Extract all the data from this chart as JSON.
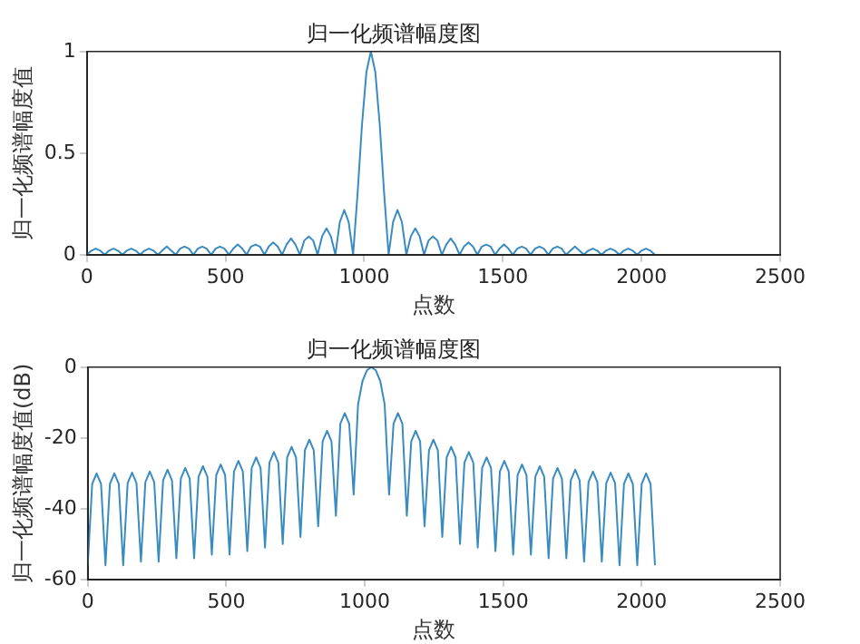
{
  "chart_data": [
    {
      "type": "line",
      "title": "归一化频谱幅度图",
      "xlabel": "点数",
      "ylabel": "归一化频谱幅度值",
      "xlim": [
        0,
        2500
      ],
      "xticks": [
        0,
        500,
        1000,
        1500,
        2000,
        2500
      ],
      "ylim": [
        0,
        1
      ],
      "yticks": [
        0,
        0.5,
        1
      ],
      "grid": false,
      "marker": "none",
      "line_style": "solid",
      "x": [
        0,
        16,
        32,
        48,
        64,
        80,
        96,
        112,
        128,
        144,
        160,
        176,
        192,
        208,
        224,
        240,
        256,
        272,
        288,
        304,
        320,
        336,
        352,
        368,
        384,
        400,
        416,
        432,
        448,
        464,
        480,
        496,
        512,
        528,
        544,
        560,
        576,
        592,
        608,
        624,
        640,
        656,
        672,
        688,
        704,
        720,
        736,
        752,
        768,
        784,
        800,
        816,
        832,
        848,
        864,
        880,
        896,
        912,
        928,
        944,
        960,
        976,
        992,
        1008,
        1024,
        1040,
        1056,
        1072,
        1088,
        1104,
        1120,
        1136,
        1152,
        1168,
        1184,
        1200,
        1216,
        1232,
        1248,
        1264,
        1280,
        1296,
        1312,
        1328,
        1344,
        1360,
        1376,
        1392,
        1408,
        1424,
        1440,
        1456,
        1472,
        1488,
        1504,
        1520,
        1536,
        1552,
        1568,
        1584,
        1600,
        1616,
        1632,
        1648,
        1664,
        1680,
        1696,
        1712,
        1728,
        1744,
        1760,
        1776,
        1792,
        1808,
        1824,
        1840,
        1856,
        1872,
        1888,
        1904,
        1920,
        1936,
        1952,
        1968,
        1984,
        2000,
        2016,
        2032,
        2048
      ],
      "series": [
        {
          "color": "#3a8bc0",
          "values": [
            0,
            0.02,
            0.03,
            0.02,
            0,
            0.02,
            0.03,
            0.02,
            0,
            0.02,
            0.03,
            0.02,
            0,
            0.02,
            0.03,
            0.02,
            0,
            0.02,
            0.04,
            0.02,
            0,
            0.03,
            0.04,
            0.03,
            0,
            0.03,
            0.04,
            0.03,
            0,
            0.03,
            0.04,
            0.03,
            0,
            0.03,
            0.05,
            0.03,
            0,
            0.04,
            0.05,
            0.04,
            0,
            0.04,
            0.06,
            0.04,
            0,
            0.05,
            0.08,
            0.05,
            0,
            0.07,
            0.09,
            0.07,
            0,
            0.09,
            0.13,
            0.09,
            0,
            0.16,
            0.22,
            0.16,
            0,
            0.3,
            0.64,
            0.9,
            1,
            0.9,
            0.64,
            0.3,
            0,
            0.16,
            0.22,
            0.16,
            0,
            0.09,
            0.13,
            0.09,
            0,
            0.07,
            0.09,
            0.07,
            0,
            0.05,
            0.08,
            0.05,
            0,
            0.04,
            0.06,
            0.04,
            0,
            0.04,
            0.05,
            0.04,
            0,
            0.03,
            0.05,
            0.03,
            0,
            0.03,
            0.04,
            0.03,
            0,
            0.03,
            0.04,
            0.03,
            0,
            0.03,
            0.04,
            0.03,
            0,
            0.02,
            0.04,
            0.02,
            0,
            0.02,
            0.03,
            0.02,
            0,
            0.02,
            0.03,
            0.02,
            0,
            0.02,
            0.03,
            0.02,
            0,
            0.02,
            0.03,
            0.02,
            0
          ]
        }
      ]
    },
    {
      "type": "line",
      "title": "归一化频谱幅度图",
      "xlabel": "点数",
      "ylabel": "归一化频谱幅度值(dB)",
      "xlim": [
        0,
        2500
      ],
      "xticks": [
        0,
        500,
        1000,
        1500,
        2000,
        2500
      ],
      "ylim": [
        -60,
        0
      ],
      "yticks": [
        -60,
        -40,
        -20,
        0
      ],
      "grid": false,
      "marker": "none",
      "line_style": "solid",
      "x": [
        0,
        16,
        32,
        48,
        64,
        80,
        96,
        112,
        128,
        144,
        160,
        176,
        192,
        208,
        224,
        240,
        256,
        272,
        288,
        304,
        320,
        336,
        352,
        368,
        384,
        400,
        416,
        432,
        448,
        464,
        480,
        496,
        512,
        528,
        544,
        560,
        576,
        592,
        608,
        624,
        640,
        656,
        672,
        688,
        704,
        720,
        736,
        752,
        768,
        784,
        800,
        816,
        832,
        848,
        864,
        880,
        896,
        912,
        928,
        944,
        960,
        976,
        992,
        1008,
        1024,
        1040,
        1056,
        1072,
        1088,
        1104,
        1120,
        1136,
        1152,
        1168,
        1184,
        1200,
        1216,
        1232,
        1248,
        1264,
        1280,
        1296,
        1312,
        1328,
        1344,
        1360,
        1376,
        1392,
        1408,
        1424,
        1440,
        1456,
        1472,
        1488,
        1504,
        1520,
        1536,
        1552,
        1568,
        1584,
        1600,
        1616,
        1632,
        1648,
        1664,
        1680,
        1696,
        1712,
        1728,
        1744,
        1760,
        1776,
        1792,
        1808,
        1824,
        1840,
        1856,
        1872,
        1888,
        1904,
        1920,
        1936,
        1952,
        1968,
        1984,
        2000,
        2016,
        2032,
        2048
      ],
      "series": [
        {
          "color": "#3a8bc0",
          "values": [
            -56,
            -33,
            -30,
            -33,
            -56,
            -33,
            -30,
            -33,
            -56,
            -32.8,
            -29.8,
            -32.8,
            -55,
            -32.5,
            -29.5,
            -32.5,
            -55,
            -32,
            -29,
            -32,
            -54,
            -31.5,
            -28.5,
            -31.5,
            -54,
            -31,
            -28,
            -31,
            -53,
            -30.5,
            -27.5,
            -30.5,
            -53,
            -29.5,
            -26.5,
            -29.5,
            -52,
            -28.5,
            -25.5,
            -28.5,
            -51,
            -27,
            -24,
            -27,
            -50,
            -25.5,
            -22.5,
            -25.5,
            -48,
            -23.5,
            -20.5,
            -23.5,
            -45,
            -21,
            -18,
            -21,
            -42,
            -16,
            -13,
            -16,
            -36,
            -10.5,
            -3.9,
            -0.9,
            0,
            -0.9,
            -3.9,
            -10.5,
            -36,
            -16,
            -13,
            -16,
            -42,
            -21,
            -18,
            -21,
            -45,
            -23.5,
            -20.5,
            -23.5,
            -48,
            -25.5,
            -22.5,
            -25.5,
            -50,
            -27,
            -24,
            -27,
            -51,
            -28.5,
            -25.5,
            -28.5,
            -52,
            -29.5,
            -26.5,
            -29.5,
            -53,
            -30.5,
            -27.5,
            -30.5,
            -53,
            -31,
            -28,
            -31,
            -54,
            -31.5,
            -28.5,
            -31.5,
            -54,
            -32,
            -29,
            -32,
            -55,
            -32.5,
            -29.5,
            -32.5,
            -55,
            -32.8,
            -29.8,
            -32.8,
            -56,
            -33,
            -30,
            -33,
            -56,
            -33,
            -30,
            -33,
            -56
          ]
        }
      ]
    }
  ]
}
